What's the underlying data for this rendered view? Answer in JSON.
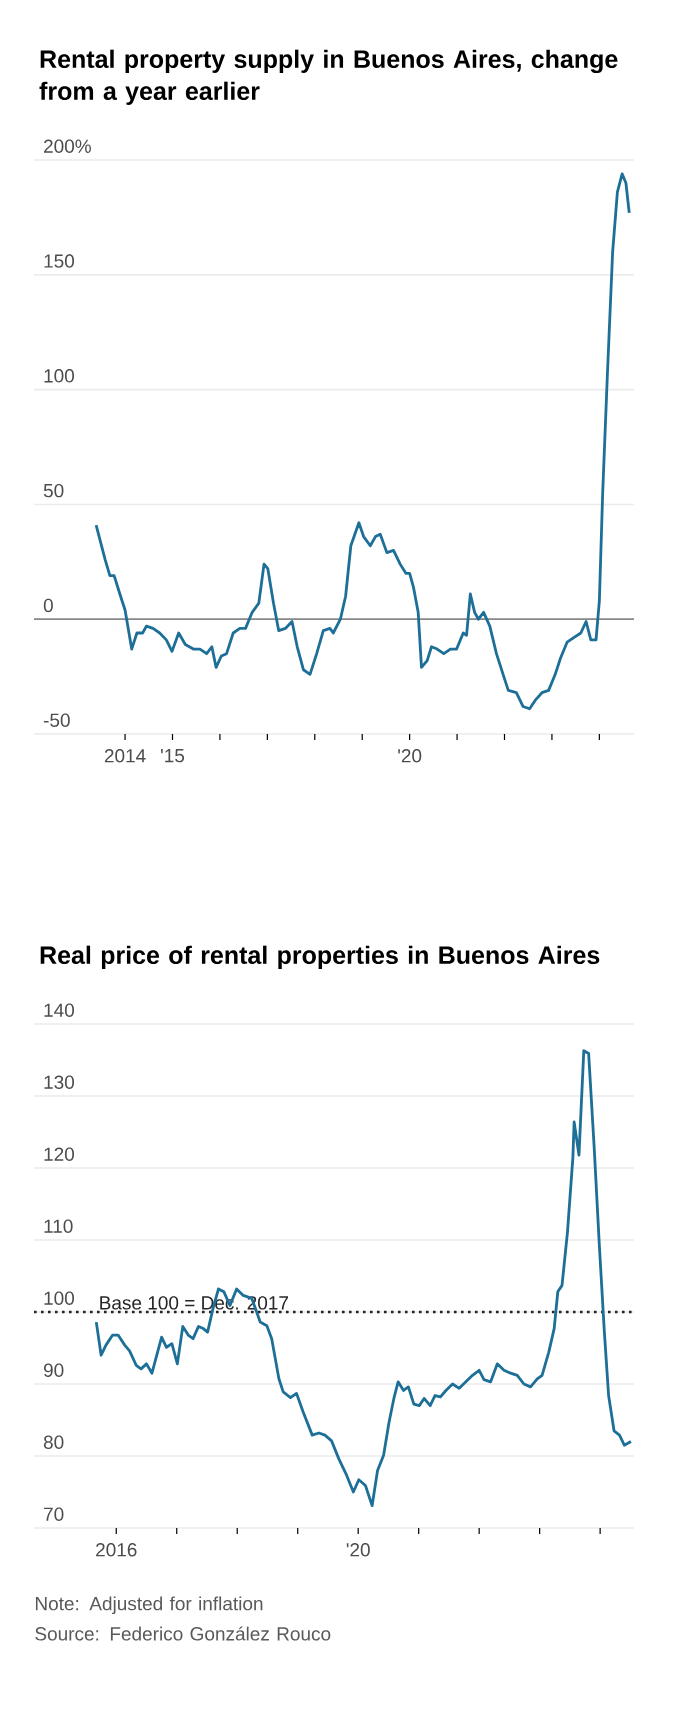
{
  "chart_data": [
    {
      "type": "line",
      "title": "Rental property supply in Buenos Aires, change from a year earlier",
      "color": "#1d6f98",
      "grid": "y",
      "x": [
        2013.39,
        2013.58,
        2013.68,
        2013.77,
        2013.89,
        2014.0,
        2014.14,
        2014.25,
        2014.37,
        2014.45,
        2014.59,
        2014.73,
        2014.87,
        2014.99,
        2015.13,
        2015.27,
        2015.44,
        2015.58,
        2015.72,
        2015.83,
        2015.92,
        2016.03,
        2016.14,
        2016.28,
        2016.42,
        2016.54,
        2016.68,
        2016.82,
        2016.93,
        2017.01,
        2017.13,
        2017.24,
        2017.38,
        2017.52,
        2017.63,
        2017.76,
        2017.9,
        2018.04,
        2018.18,
        2018.32,
        2018.39,
        2018.54,
        2018.65,
        2018.76,
        2018.93,
        2019.03,
        2019.17,
        2019.28,
        2019.38,
        2019.52,
        2019.66,
        2019.8,
        2019.92,
        2020.0,
        2020.08,
        2020.18,
        2020.25,
        2020.37,
        2020.46,
        2020.58,
        2020.72,
        2020.86,
        2020.99,
        2021.13,
        2021.2,
        2021.28,
        2021.37,
        2021.45,
        2021.56,
        2021.69,
        2021.83,
        2021.97,
        2022.08,
        2022.25,
        2022.39,
        2022.53,
        2022.66,
        2022.79,
        2022.93,
        2023.07,
        2023.18,
        2023.32,
        2023.46,
        2023.61,
        2023.72,
        2023.82,
        2023.93,
        2024.0,
        2024.07,
        2024.17,
        2024.28,
        2024.38,
        2024.48,
        2024.56,
        2024.63
      ],
      "values": [
        41,
        26,
        19,
        19,
        11,
        4,
        -13,
        -6,
        -6,
        -3,
        -4,
        -6,
        -9,
        -14,
        -6,
        -11,
        -13,
        -13,
        -15,
        -12,
        -21,
        -16,
        -15,
        -6,
        -4,
        -4,
        3,
        7,
        24,
        22,
        7,
        -5,
        -4,
        -1,
        -12,
        -22,
        -24,
        -15,
        -5,
        -4,
        -6,
        0,
        10,
        32,
        42,
        36,
        32,
        36,
        37,
        29,
        30,
        24,
        20,
        20,
        14,
        3,
        -21,
        -18,
        -12,
        -13,
        -15,
        -13,
        -13,
        -6,
        -7,
        11,
        3,
        0,
        3,
        -3,
        -15,
        -24,
        -31,
        -32,
        -38,
        -39,
        -35,
        -32,
        -31,
        -24,
        -17,
        -10,
        -8,
        -6,
        -1,
        -9,
        -9,
        8,
        55,
        107,
        160,
        186,
        194,
        190,
        177
      ],
      "xlim": [
        2012.08,
        2024.73
      ],
      "ylim": [
        -50,
        200
      ],
      "xticks": [
        {
          "value": 2014,
          "label": "2014"
        },
        {
          "value": 2015,
          "label": "'15"
        },
        {
          "value": 2016,
          "label": null
        },
        {
          "value": 2017,
          "label": null
        },
        {
          "value": 2018,
          "label": null
        },
        {
          "value": 2019,
          "label": null
        },
        {
          "value": 2020,
          "label": "'20"
        },
        {
          "value": 2021,
          "label": null
        },
        {
          "value": 2022,
          "label": null
        },
        {
          "value": 2023,
          "label": null
        },
        {
          "value": 2024,
          "label": null
        }
      ],
      "yticks": [
        -50,
        0,
        50,
        100,
        150,
        {
          "value": 200,
          "label": "200%"
        }
      ],
      "ref_lines": [
        {
          "axis": "y",
          "value": 0,
          "color": "#888888",
          "line_style": "solid"
        }
      ]
    },
    {
      "type": "line",
      "title": "Real price of rental properties in Buenos Aires",
      "color": "#1d6f98",
      "grid": "y",
      "x": [
        2015.67,
        2015.75,
        2015.83,
        2015.94,
        2016.03,
        2016.14,
        2016.22,
        2016.33,
        2016.41,
        2016.5,
        2016.59,
        2016.67,
        2016.75,
        2016.83,
        2016.92,
        2017.01,
        2017.1,
        2017.19,
        2017.27,
        2017.36,
        2017.44,
        2017.51,
        2017.6,
        2017.69,
        2017.78,
        2017.88,
        2017.99,
        2018.1,
        2018.24,
        2018.38,
        2018.49,
        2018.57,
        2018.69,
        2018.76,
        2018.88,
        2018.98,
        2019.09,
        2019.24,
        2019.35,
        2019.45,
        2019.56,
        2019.68,
        2019.81,
        2019.92,
        2020.01,
        2020.12,
        2020.23,
        2020.32,
        2020.42,
        2020.51,
        2020.59,
        2020.66,
        2020.75,
        2020.83,
        2020.92,
        2021.01,
        2021.09,
        2021.19,
        2021.27,
        2021.36,
        2021.45,
        2021.56,
        2021.67,
        2021.78,
        2021.89,
        2022.0,
        2022.08,
        2022.19,
        2022.3,
        2022.41,
        2022.52,
        2022.63,
        2022.74,
        2022.85,
        2022.96,
        2023.04,
        2023.15,
        2023.24,
        2023.3,
        2023.37,
        2023.46,
        2023.55,
        2023.57,
        2023.65,
        2023.73,
        2023.81,
        2023.9,
        2023.99,
        2024.07,
        2024.14,
        2024.23,
        2024.32,
        2024.4,
        2024.51
      ],
      "values": [
        98.6,
        94,
        95.4,
        96.8,
        96.8,
        95.4,
        94.6,
        92.6,
        92.1,
        92.8,
        91.5,
        94,
        96.5,
        95.1,
        95.6,
        92.8,
        98,
        96.8,
        96.3,
        98,
        97.7,
        97.2,
        100.5,
        103.2,
        102.8,
        100.9,
        103.2,
        102.3,
        101.9,
        98.6,
        98.1,
        96.3,
        90.7,
        88.9,
        88.1,
        88.7,
        86.1,
        82.9,
        83.2,
        82.9,
        82.1,
        79.6,
        77.3,
        75,
        76.7,
        75.9,
        73.1,
        78,
        80.1,
        84.7,
        88,
        90.3,
        89.1,
        89.6,
        87.2,
        87,
        88,
        87,
        88.4,
        88.2,
        89.1,
        90,
        89.4,
        90.3,
        91.2,
        91.9,
        90.6,
        90.3,
        92.8,
        91.9,
        91.5,
        91.2,
        90,
        89.6,
        90.7,
        91.2,
        94.4,
        97.7,
        102.8,
        103.7,
        111.1,
        121.5,
        126.4,
        121.8,
        136.3,
        135.9,
        123.1,
        108.8,
        97.2,
        88.4,
        83.5,
        82.9,
        81.5,
        82
      ],
      "xlim": [
        2014.64,
        2024.56
      ],
      "ylim": [
        70,
        140
      ],
      "xticks": [
        {
          "value": 2016,
          "label": "2016"
        },
        {
          "value": 2017,
          "label": null
        },
        {
          "value": 2018,
          "label": null
        },
        {
          "value": 2019,
          "label": null
        },
        {
          "value": 2020,
          "label": "'20"
        },
        {
          "value": 2021,
          "label": null
        },
        {
          "value": 2022,
          "label": null
        },
        {
          "value": 2023,
          "label": null
        },
        {
          "value": 2024,
          "label": null
        }
      ],
      "yticks": [
        70,
        80,
        90,
        100,
        110,
        120,
        130,
        140
      ],
      "ref_lines": [
        {
          "axis": "y",
          "value": 100,
          "label": "Base 100 = Dec. 2017",
          "color": "#222222",
          "line_style": "dotted"
        }
      ],
      "annotations": [
        "Note: Adjusted for inflation",
        "Source: Federico González Rouco"
      ]
    }
  ]
}
